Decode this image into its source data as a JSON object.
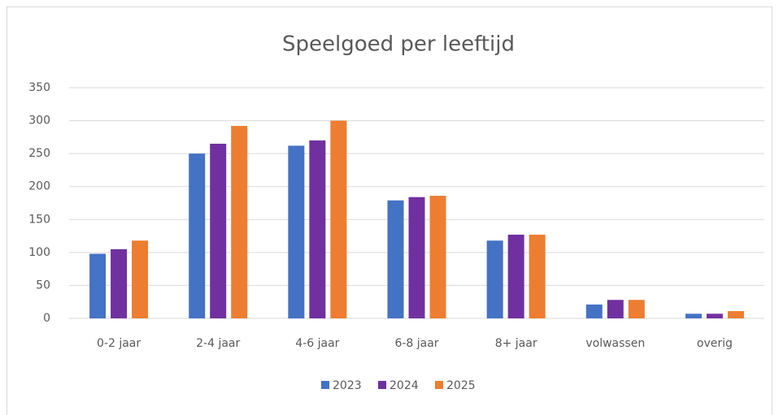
{
  "chart_data": {
    "type": "bar",
    "title": "Speelgoed per leeftijd",
    "categories": [
      "0-2 jaar",
      "2-4 jaar",
      "4-6 jaar",
      "6-8 jaar",
      "8+ jaar",
      "volwassen",
      "overig"
    ],
    "series": [
      {
        "name": "2023",
        "color": "#4472c4",
        "values": [
          98,
          250,
          262,
          179,
          118,
          21,
          7
        ]
      },
      {
        "name": "2024",
        "color": "#7030a0",
        "values": [
          105,
          265,
          270,
          184,
          127,
          28,
          7
        ]
      },
      {
        "name": "2025",
        "color": "#ed7d31",
        "values": [
          118,
          292,
          300,
          186,
          127,
          28,
          11
        ]
      }
    ],
    "ylim": [
      0,
      350
    ],
    "yticks": [
      0,
      50,
      100,
      150,
      200,
      250,
      300,
      350
    ],
    "grid": true,
    "legend": "bottom"
  }
}
